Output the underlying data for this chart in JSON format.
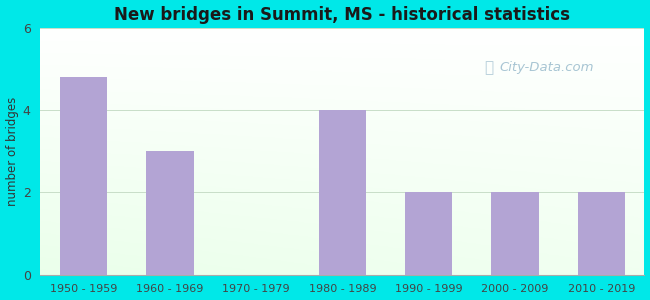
{
  "title": "New bridges in Summit, MS - historical statistics",
  "categories": [
    "1950 - 1959",
    "1960 - 1969",
    "1970 - 1979",
    "1980 - 1989",
    "1990 - 1999",
    "2000 - 2009",
    "2010 - 2019"
  ],
  "values": [
    4.8,
    3.0,
    0,
    4.0,
    2.0,
    2.0,
    2.0
  ],
  "bar_color": "#b3a4d4",
  "ylabel": "number of bridges",
  "ylim": [
    0,
    6
  ],
  "yticks": [
    0,
    2,
    4,
    6
  ],
  "bg_outer": "#00e8e8",
  "grid_color": "#c8ddc8",
  "title_color": "#1a1a1a",
  "axis_label_color": "#333333",
  "tick_color": "#444444",
  "watermark_text": "City-Data.com",
  "watermark_color": "#99bbcc",
  "bar_width": 0.55
}
